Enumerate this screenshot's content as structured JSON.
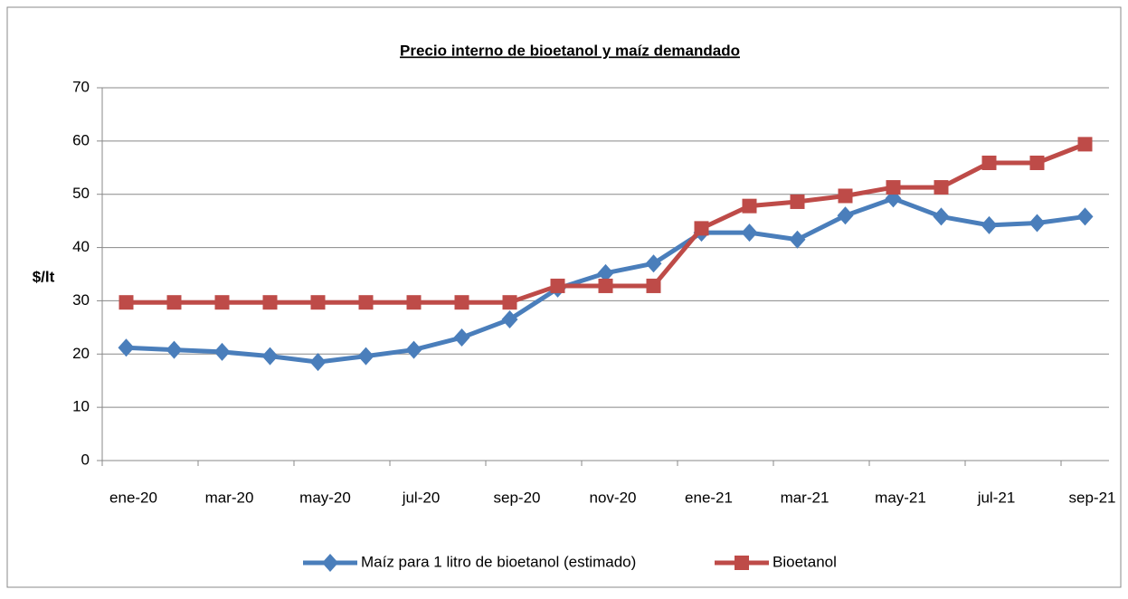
{
  "chart_data": {
    "type": "line",
    "title": "Precio interno de bioetanol y maíz demandado",
    "y_label": "$/lt",
    "categories": [
      "ene-20",
      null,
      "mar-20",
      null,
      "may-20",
      null,
      "jul-20",
      null,
      "sep-20",
      null,
      "nov-20",
      null,
      "ene-21",
      null,
      "mar-21",
      null,
      "may-21",
      null,
      "jul-21",
      null,
      "sep-21"
    ],
    "series": [
      {
        "name": "Maíz para 1 litro de bioetanol (estimado)",
        "color": "#4a7ebb",
        "marker": "diamond",
        "values": [
          21.2,
          20.8,
          20.4,
          19.6,
          18.5,
          19.6,
          20.8,
          23.1,
          26.5,
          32.3,
          35.2,
          37.0,
          42.8,
          42.8,
          41.5,
          46.0,
          49.2,
          45.8,
          44.2,
          44.6,
          45.8
        ]
      },
      {
        "name": "Bioetanol",
        "color": "#be4b48",
        "marker": "square",
        "values": [
          29.7,
          29.7,
          29.7,
          29.7,
          29.7,
          29.7,
          29.7,
          29.7,
          29.7,
          32.8,
          32.8,
          32.8,
          43.6,
          47.8,
          48.6,
          49.7,
          51.3,
          51.3,
          55.9,
          55.9,
          59.4
        ]
      }
    ],
    "ylim": [
      0,
      70
    ],
    "yticks": [
      0,
      10,
      20,
      30,
      40,
      50,
      60,
      70
    ],
    "grid": true,
    "legend": "bottom"
  }
}
